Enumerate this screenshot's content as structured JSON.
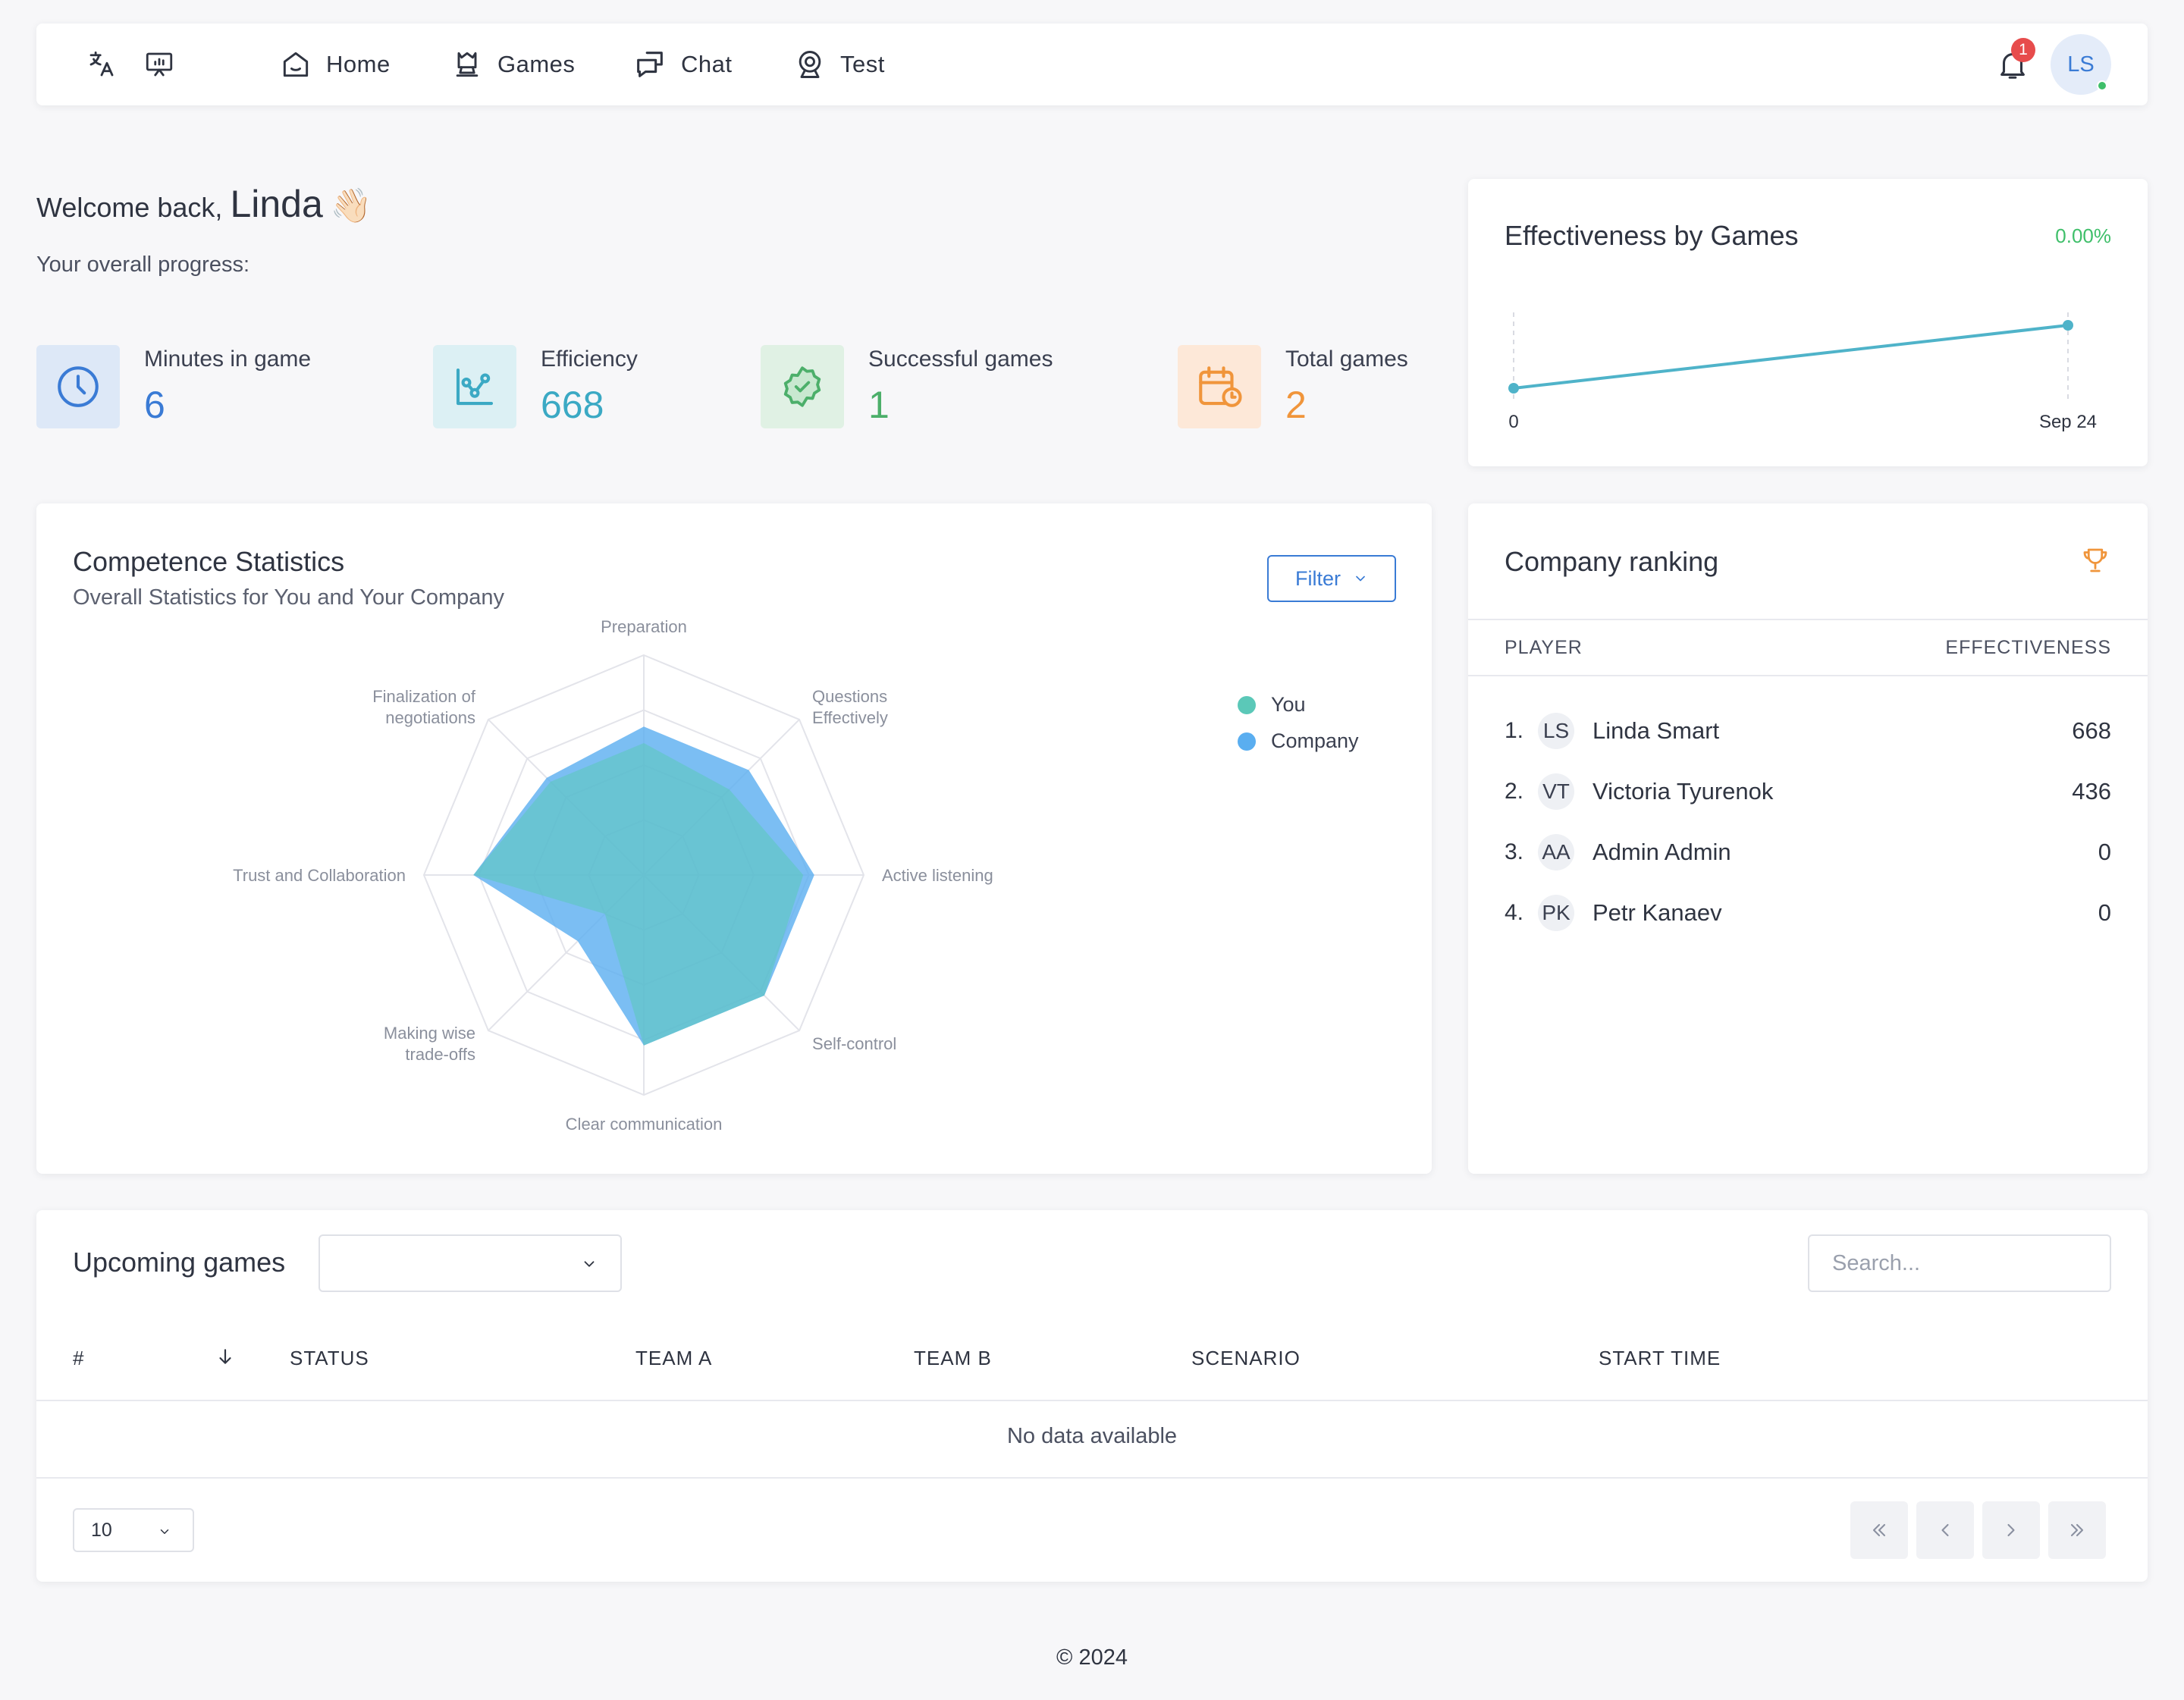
{
  "nav": {
    "links": [
      {
        "label": "Home"
      },
      {
        "label": "Games"
      },
      {
        "label": "Chat"
      },
      {
        "label": "Test"
      }
    ],
    "notification_count": "1",
    "avatar_initials": "LS",
    "icons": [
      "translate-icon",
      "presentation-icon",
      "home-icon",
      "crown-icon",
      "chat-icon",
      "webcam-icon",
      "bell-icon"
    ]
  },
  "welcome": {
    "prefix": "Welcome back,",
    "name": "Linda",
    "emoji": "👋🏻",
    "progress_label": "Your overall progress:"
  },
  "stats": [
    {
      "label": "Minutes in game",
      "value": "6",
      "color": "#3a7bd5",
      "bg": "#dde8f7",
      "icon": "clock-icon"
    },
    {
      "label": "Efficiency",
      "value": "668",
      "color": "#3ba9c4",
      "bg": "#dcf0f4",
      "icon": "chart-nodes-icon"
    },
    {
      "label": "Successful games",
      "value": "1",
      "color": "#4caf6a",
      "bg": "#e0f1e4",
      "icon": "badge-check-icon"
    },
    {
      "label": "Total games",
      "value": "2",
      "color": "#f0953b",
      "bg": "#fde8d8",
      "icon": "calendar-clock-icon"
    }
  ],
  "effectiveness": {
    "title": "Effectiveness by Games",
    "change": "0.00%",
    "chart_data": {
      "type": "line",
      "x": [
        "0",
        "Sep 24"
      ],
      "series": [
        {
          "values": [
            0,
            668
          ]
        }
      ],
      "color": "#4fb3c9"
    }
  },
  "competence": {
    "title": "Competence Statistics",
    "subtitle": "Overall Statistics for You and Your Company",
    "filter_label": "Filter",
    "chart_data": {
      "type": "radar",
      "categories": [
        "Preparation",
        "Questions Effectively",
        "Active listening",
        "Self-control",
        "Clear communication",
        "Making wise trade-offs",
        "Trust and Collaboration",
        "Finalization of negotiations"
      ],
      "category_lines": [
        [
          "Preparation"
        ],
        [
          "Questions",
          "Effectively"
        ],
        [
          "Active listening"
        ],
        [
          "Self-control"
        ],
        [
          "Clear communication"
        ],
        [
          "Making wise",
          "trade-offs"
        ],
        [
          "Trust and Collaboration"
        ],
        [
          "Finalization of",
          "negotiations"
        ]
      ],
      "rmax": 4,
      "series": [
        {
          "name": "You",
          "color": "#5bc8b8",
          "values": [
            2.4,
            2.2,
            2.9,
            3.1,
            3.1,
            1.0,
            3.1,
            2.4
          ]
        },
        {
          "name": "Company",
          "color": "#5aaef0",
          "values": [
            2.7,
            2.7,
            3.1,
            3.1,
            3.1,
            1.7,
            3.1,
            2.5
          ]
        }
      ]
    }
  },
  "ranking": {
    "title": "Company ranking",
    "col_player": "PLAYER",
    "col_eff": "EFFECTIVENESS",
    "trophy_color": "#f0953b",
    "rows": [
      {
        "rank": "1.",
        "initials": "LS",
        "name": "Linda Smart",
        "value": "668"
      },
      {
        "rank": "2.",
        "initials": "VT",
        "name": "Victoria Tyurenok",
        "value": "436"
      },
      {
        "rank": "3.",
        "initials": "AA",
        "name": "Admin Admin",
        "value": "0"
      },
      {
        "rank": "4.",
        "initials": "PK",
        "name": "Petr Kanaev",
        "value": "0"
      }
    ]
  },
  "games": {
    "title": "Upcoming games",
    "search_placeholder": "Search...",
    "columns": [
      "#",
      "STATUS",
      "TEAM A",
      "TEAM B",
      "SCENARIO",
      "START TIME"
    ],
    "empty_text": "No data available",
    "page_size": "10"
  },
  "footer": "© 2024"
}
